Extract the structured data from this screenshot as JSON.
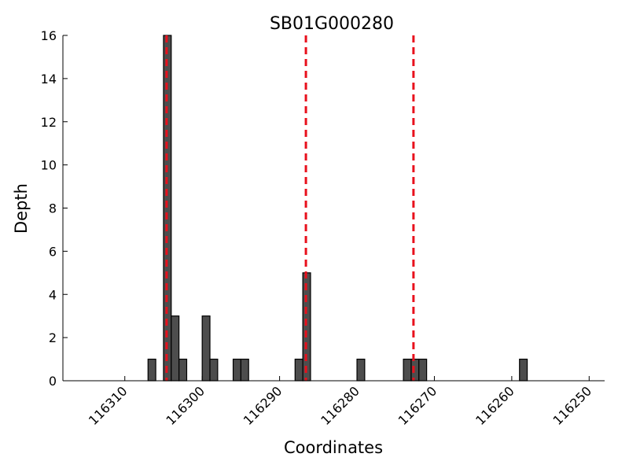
{
  "chart_data": {
    "type": "bar",
    "title": "SB01G000280",
    "xlabel": "Coordinates",
    "ylabel": "Depth",
    "x_reversed": true,
    "xlim": [
      116318,
      116248
    ],
    "ylim": [
      0,
      16
    ],
    "bin_width": 1,
    "x_ticks": [
      116310,
      116300,
      116290,
      116280,
      116270,
      116260,
      116250
    ],
    "y_ticks": [
      0,
      2,
      4,
      6,
      8,
      10,
      12,
      14,
      16
    ],
    "grid": false,
    "bars": [
      {
        "x": 116306.5,
        "value": 1
      },
      {
        "x": 116304.5,
        "value": 16
      },
      {
        "x": 116303.5,
        "value": 3
      },
      {
        "x": 116302.5,
        "value": 1
      },
      {
        "x": 116299.5,
        "value": 3
      },
      {
        "x": 116298.5,
        "value": 1
      },
      {
        "x": 116295.5,
        "value": 1
      },
      {
        "x": 116294.5,
        "value": 1
      },
      {
        "x": 116287.5,
        "value": 1
      },
      {
        "x": 116286.5,
        "value": 5
      },
      {
        "x": 116279.5,
        "value": 1
      },
      {
        "x": 116273.5,
        "value": 1
      },
      {
        "x": 116272.5,
        "value": 1
      },
      {
        "x": 116271.5,
        "value": 1
      },
      {
        "x": 116258.5,
        "value": 1
      }
    ],
    "reference_lines": [
      116304.6,
      116286.6,
      116272.7
    ],
    "colors": {
      "bar_fill": "#4d4d4d",
      "bar_edge": "#000000",
      "reference_line": "#e8101c"
    }
  }
}
